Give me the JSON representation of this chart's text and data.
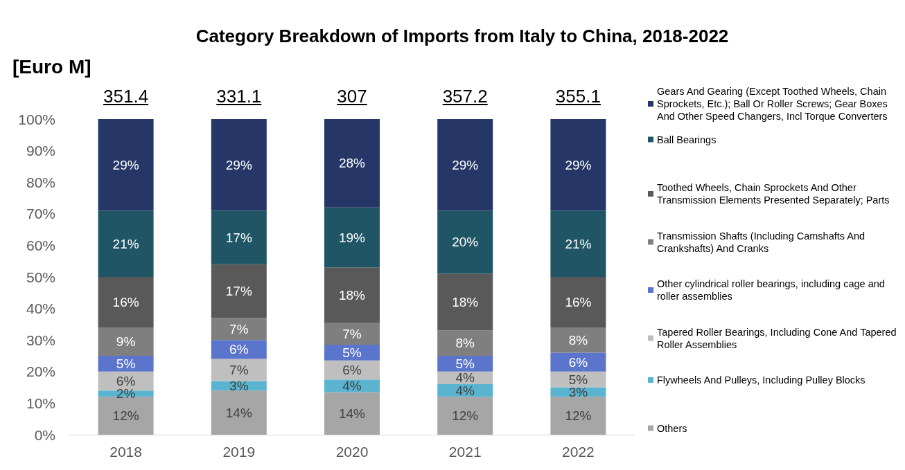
{
  "chart_data": {
    "type": "bar",
    "title": "Category Breakdown of Imports from Italy to China, 2018-2022",
    "ylabel": "[Euro M]",
    "categories": [
      "2018",
      "2019",
      "2020",
      "2021",
      "2022"
    ],
    "stacked": true,
    "legend": "right",
    "grid": false,
    "ylim": [
      0,
      100
    ],
    "yticks": [
      {
        "value": 0,
        "label": "0%"
      },
      {
        "value": 10,
        "label": "10%"
      },
      {
        "value": 20,
        "label": "20%"
      },
      {
        "value": 30,
        "label": "30%"
      },
      {
        "value": 40,
        "label": "40%"
      },
      {
        "value": 50,
        "label": "50%"
      },
      {
        "value": 60,
        "label": "60%"
      },
      {
        "value": 70,
        "label": "70%"
      },
      {
        "value": 80,
        "label": "80%"
      },
      {
        "value": 90,
        "label": "90%"
      },
      {
        "value": 100,
        "label": "100%"
      }
    ],
    "annotations": [
      {
        "text": "351.4",
        "x": "2018",
        "y": 100
      },
      {
        "text": "331.1",
        "x": "2019",
        "y": 100
      },
      {
        "text": "307",
        "x": "2020",
        "y": 100
      },
      {
        "text": "357.2",
        "x": "2021",
        "y": 100
      },
      {
        "text": "355.1",
        "x": "2022",
        "y": 100
      }
    ],
    "series": [
      {
        "name": "Others",
        "color": "#a6a6a6",
        "values": [
          12,
          14,
          13.5,
          12,
          12
        ],
        "value_labels": [
          "12%",
          "14%",
          "14%",
          "12%",
          "12%"
        ]
      },
      {
        "name": "Flywheels And Pulleys, Including Pulley Blocks",
        "color": "#5ab4cf",
        "values": [
          2,
          3,
          4,
          4,
          3
        ],
        "value_labels": [
          "2%",
          "3%",
          "4%",
          "4%",
          "3%"
        ]
      },
      {
        "name": "Tapered Roller Bearings, Including Cone And Tapered Roller Assemblies",
        "color": "#bfbfbf",
        "values": [
          6,
          7,
          6,
          4,
          5
        ],
        "value_labels": [
          "6%",
          "7%",
          "6%",
          "4%",
          "5%"
        ]
      },
      {
        "name": "Other cylindrical roller bearings, including cage and roller assemblies",
        "color": "#5b74cc",
        "values": [
          5,
          6,
          5,
          5,
          6
        ],
        "value_labels": [
          "5%",
          "6%",
          "5%",
          "5%",
          "6%"
        ]
      },
      {
        "name": "Transmission Shafts (Including Camshafts And Crankshafts) And Cranks",
        "color": "#7f7f7f",
        "values": [
          9,
          7,
          7,
          8,
          8
        ],
        "value_labels": [
          "9%",
          "7%",
          "7%",
          "8%",
          "8%"
        ]
      },
      {
        "name": "Toothed Wheels, Chain Sprockets And Other Transmission Elements Presented Separately; Parts",
        "color": "#595959",
        "values": [
          16,
          17,
          17.5,
          18,
          16
        ],
        "value_labels": [
          "16%",
          "17%",
          "18%",
          "18%",
          "16%"
        ]
      },
      {
        "name": "Ball Bearings",
        "color": "#1f5564",
        "values": [
          21,
          17,
          19,
          20,
          21
        ],
        "value_labels": [
          "21%",
          "17%",
          "19%",
          "20%",
          "21%"
        ]
      },
      {
        "name": "Gears And Gearing (Except Toothed Wheels, Chain Sprockets, Etc.); Ball Or Roller Screws; Gear Boxes And Other Speed Changers, Incl Torque Converters",
        "color": "#253667",
        "values": [
          29,
          29,
          28,
          29,
          29
        ],
        "value_labels": [
          "29%",
          "29%",
          "28%",
          "29%",
          "29%"
        ]
      }
    ]
  }
}
